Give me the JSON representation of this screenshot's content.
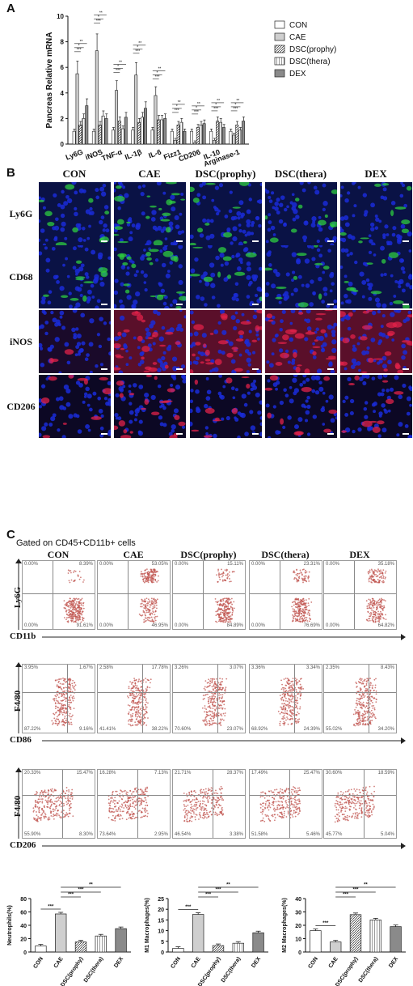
{
  "panel_labels": {
    "a": "A",
    "b": "B",
    "c": "C"
  },
  "groups": [
    "CON",
    "CAE",
    "DSC(prophy)",
    "DSC(thera)",
    "DEX"
  ],
  "panel_b": {
    "headers": [
      "CON",
      "CAE",
      "DSC(prophy)",
      "DSC(thera)",
      "DEX"
    ],
    "rows": [
      "Ly6G",
      "CD68",
      "iNOS",
      "CD206"
    ]
  },
  "panel_c": {
    "gate_title": "Gated on CD45+CD11b+ cells",
    "headers": [
      "CON",
      "CAE",
      "DSC(prophy)",
      "DSC(thera)",
      "DEX"
    ],
    "row1": {
      "ylabel": "Ly6G",
      "xlabel": "CD11b",
      "q": [
        [
          "0.00%",
          "8.39%",
          "0.00%",
          "91.61%"
        ],
        [
          "0.00%",
          "53.05%",
          "0.00%",
          "46.95%"
        ],
        [
          "0.00%",
          "15.11%",
          "0.00%",
          "84.89%"
        ],
        [
          "0.00%",
          "23.31%",
          "0.00%",
          "76.69%"
        ],
        [
          "0.00%",
          "35.18%",
          "0.00%",
          "64.82%"
        ]
      ]
    },
    "row2": {
      "ylabel": "F4/80",
      "xlabel": "CD86",
      "q": [
        [
          "3.95%",
          "1.67%",
          "87.22%",
          "9.16%"
        ],
        [
          "2.58%",
          "17.78%",
          "41.41%",
          "38.22%"
        ],
        [
          "3.26%",
          "3.07%",
          "70.60%",
          "23.07%"
        ],
        [
          "3.36%",
          "3.34%",
          "68.92%",
          "24.39%"
        ],
        [
          "2.35%",
          "8.43%",
          "55.02%",
          "34.20%"
        ]
      ]
    },
    "row3": {
      "ylabel": "F4/80",
      "xlabel": "CD206",
      "q": [
        [
          "20.33%",
          "15.47%",
          "55.90%",
          "8.30%"
        ],
        [
          "16.28%",
          "7.13%",
          "73.64%",
          "2.95%"
        ],
        [
          "21.71%",
          "28.37%",
          "46.54%",
          "3.38%"
        ],
        [
          "17.49%",
          "25.47%",
          "51.58%",
          "5.46%"
        ],
        [
          "30.60%",
          "18.59%",
          "45.77%",
          "5.04%"
        ]
      ]
    }
  },
  "colors": {
    "green": "#2ecc40",
    "red": "#e0214a",
    "blue": "#1a2bd8",
    "dot": "#c0544f"
  },
  "chart_data": [
    {
      "type": "bar",
      "ylabel": "Pancreas Relative mRNA",
      "ylim": [
        0,
        10
      ],
      "yticks": [
        "0",
        "2",
        "4",
        "6",
        "8",
        "10"
      ],
      "categories": [
        "Ly6G",
        "iNOS",
        "TNF-α",
        "IL-1β",
        "IL-6",
        "Fizz1",
        "CD206",
        "IL-10",
        "Arginase-1"
      ],
      "legend": "top-right",
      "significance": [
        "***",
        "*",
        "**"
      ],
      "series": [
        {
          "name": "CON",
          "values": [
            1.0,
            1.0,
            1.1,
            1.1,
            1.1,
            1.0,
            1.0,
            1.0,
            1.0
          ]
        },
        {
          "name": "CAE",
          "values": [
            5.5,
            7.3,
            4.2,
            5.4,
            3.8,
            0.3,
            0.1,
            0.3,
            0.7
          ]
        },
        {
          "name": "DSC(prophy)",
          "values": [
            1.5,
            1.5,
            1.8,
            1.7,
            1.9,
            1.5,
            1.3,
            1.8,
            1.5
          ]
        },
        {
          "name": "DSC(thera)",
          "values": [
            2.0,
            2.2,
            1.2,
            2.1,
            1.9,
            1.7,
            1.5,
            1.7,
            1.1
          ]
        },
        {
          "name": "DEX",
          "values": [
            3.0,
            2.0,
            2.1,
            2.8,
            2.0,
            1.0,
            1.6,
            1.3,
            1.8
          ]
        }
      ]
    },
    {
      "type": "bar",
      "ylabel": "Neutrophils(%)",
      "ylim": [
        0,
        80
      ],
      "yticks": [
        "0",
        "20",
        "40",
        "60",
        "80"
      ],
      "categories": [
        "CON",
        "CAE",
        "DSC(prophy)",
        "DSC(thera)",
        "DEX"
      ],
      "values": [
        9,
        57,
        15,
        24,
        35
      ],
      "significance": [
        "***",
        "***",
        "***",
        "**"
      ]
    },
    {
      "type": "bar",
      "ylabel": "M1 Macrophages(%)",
      "ylim": [
        0,
        25
      ],
      "yticks": [
        "0",
        "5",
        "10",
        "15",
        "20",
        "25"
      ],
      "categories": [
        "CON",
        "CAE",
        "DSC(prophy)",
        "DSC(thera)",
        "DEX"
      ],
      "values": [
        1.7,
        17.6,
        3.0,
        4.1,
        9.0
      ],
      "significance": [
        "***",
        "***",
        "***",
        "**"
      ]
    },
    {
      "type": "bar",
      "ylabel": "M2 Macrophages(%)",
      "ylim": [
        0,
        40
      ],
      "yticks": [
        "0",
        "10",
        "20",
        "30",
        "40"
      ],
      "categories": [
        "CON",
        "CAE",
        "DSC(prophy)",
        "DSC(thera)",
        "DEX"
      ],
      "values": [
        16,
        7.5,
        28,
        24,
        19
      ],
      "significance": [
        "***",
        "***",
        "***",
        "**"
      ]
    }
  ]
}
